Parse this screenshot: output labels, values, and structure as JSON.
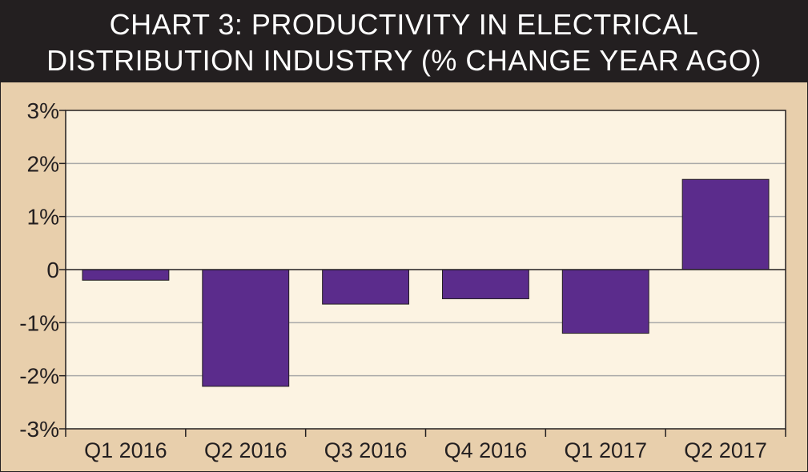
{
  "chart_data": {
    "type": "bar",
    "title": "CHART 3: PRODUCTIVITY IN ELECTRICAL",
    "subtitle": "DISTRIBUTION INDUSTRY (% CHANGE YEAR AGO)",
    "categories": [
      "Q1 2016",
      "Q2 2016",
      "Q3 2016",
      "Q4 2016",
      "Q1 2017",
      "Q2 2017"
    ],
    "values": [
      -0.2,
      -2.2,
      -0.65,
      -0.55,
      -1.2,
      1.7
    ],
    "ylim": [
      -3,
      3
    ],
    "yticks": [
      3,
      2,
      1,
      0,
      -1,
      -2,
      -3
    ],
    "ytick_labels": [
      "3%",
      "2%",
      "1%",
      "0",
      "-1%",
      "-2%",
      "-3%"
    ],
    "xlabel": "",
    "ylabel": "",
    "grid": true,
    "colors": {
      "bar": "#5b2c8c",
      "plot_bg": "#fcf3e2",
      "outer_bg": "#e8cfac",
      "header_bg": "#231f20",
      "grid": "#a9a9a9",
      "axis": "#231f20",
      "text": "#231f20"
    }
  }
}
